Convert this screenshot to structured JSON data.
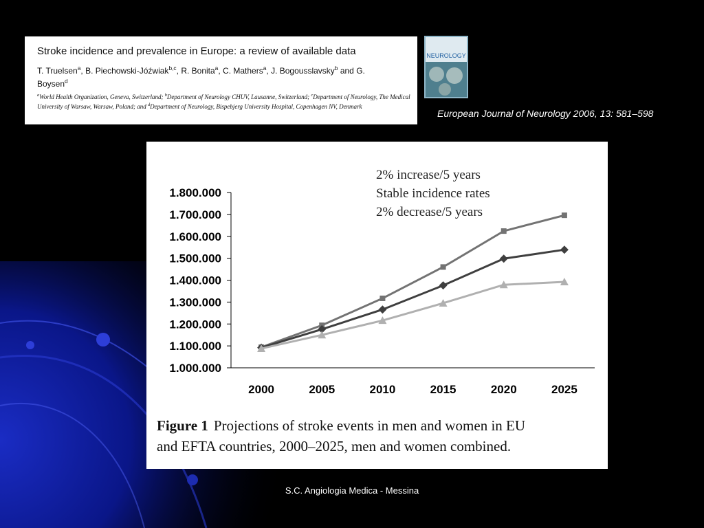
{
  "paper": {
    "title": "Stroke incidence and prevalence in Europe: a review of available data",
    "authors": [
      {
        "name": "T. Truelsen",
        "sup": "a",
        "after": ","
      },
      {
        "name": "B. Piechowski-Jóźwiak",
        "sup": "b,c",
        "after": ","
      },
      {
        "name": "R. Bonita",
        "sup": "a",
        "after": ","
      },
      {
        "name": "C. Mathers",
        "sup": "a",
        "after": ","
      },
      {
        "name": "J. Bogousslavsky",
        "sup": "b",
        "after": "and"
      },
      {
        "name": "G. Boysen",
        "sup": "d",
        "after": ""
      }
    ],
    "affiliations": [
      {
        "sup": "a",
        "text": "World Health Organization, Geneva, Switzerland;"
      },
      {
        "sup": "b",
        "text": "Department of Neurology CHUV, Lausanne, Switzerland;"
      },
      {
        "sup": "c",
        "text": "Department of Neurology, The Medical University of Warsaw, Warsaw, Poland; and"
      },
      {
        "sup": "d",
        "text": "Department of Neurology, Bispebjerg University Hospital, Copenhagen NV, Denmark"
      }
    ],
    "cover_title": "NEUROLOGY",
    "citation": "European Journal of Neurology 2006, 13: 581–598"
  },
  "chart_data": {
    "type": "line",
    "x": [
      2000,
      2005,
      2010,
      2015,
      2020,
      2025
    ],
    "xlim": [
      1997.5,
      2027.5
    ],
    "xticks": [
      2000,
      2005,
      2010,
      2015,
      2020,
      2025
    ],
    "ylim": [
      1000000,
      1800000
    ],
    "yticks": [
      {
        "value": 1000000,
        "label": "1.000.000"
      },
      {
        "value": 1100000,
        "label": "1.100.000"
      },
      {
        "value": 1200000,
        "label": "1.200.000"
      },
      {
        "value": 1300000,
        "label": "1.300.000"
      },
      {
        "value": 1400000,
        "label": "1.400.000"
      },
      {
        "value": 1500000,
        "label": "1.500.000"
      },
      {
        "value": 1600000,
        "label": "1.600.000"
      },
      {
        "value": 1700000,
        "label": "1.700.000"
      },
      {
        "value": 1800000,
        "label": "1.800.000"
      }
    ],
    "series": [
      {
        "name": "2% increase/5 years",
        "color": "#737373",
        "marker": "square",
        "values": [
          1094000,
          1194000,
          1317000,
          1460000,
          1624000,
          1696000
        ]
      },
      {
        "name": "Stable incidence rates",
        "color": "#3f3f3f",
        "marker": "diamond",
        "values": [
          1092000,
          1176000,
          1266000,
          1376000,
          1498000,
          1539000
        ]
      },
      {
        "name": "2% decrease/5 years",
        "color": "#b0b0b0",
        "marker": "triangle",
        "values": [
          1088000,
          1150000,
          1216000,
          1295000,
          1379000,
          1392000
        ]
      }
    ],
    "caption": {
      "label": "Figure 1",
      "text_lines": [
        "Projections of stroke events in men and women in EU",
        "and EFTA countries, 2000–2025, men and women combined."
      ]
    }
  },
  "footer": "S.C. Angiologia Medica - Messina"
}
